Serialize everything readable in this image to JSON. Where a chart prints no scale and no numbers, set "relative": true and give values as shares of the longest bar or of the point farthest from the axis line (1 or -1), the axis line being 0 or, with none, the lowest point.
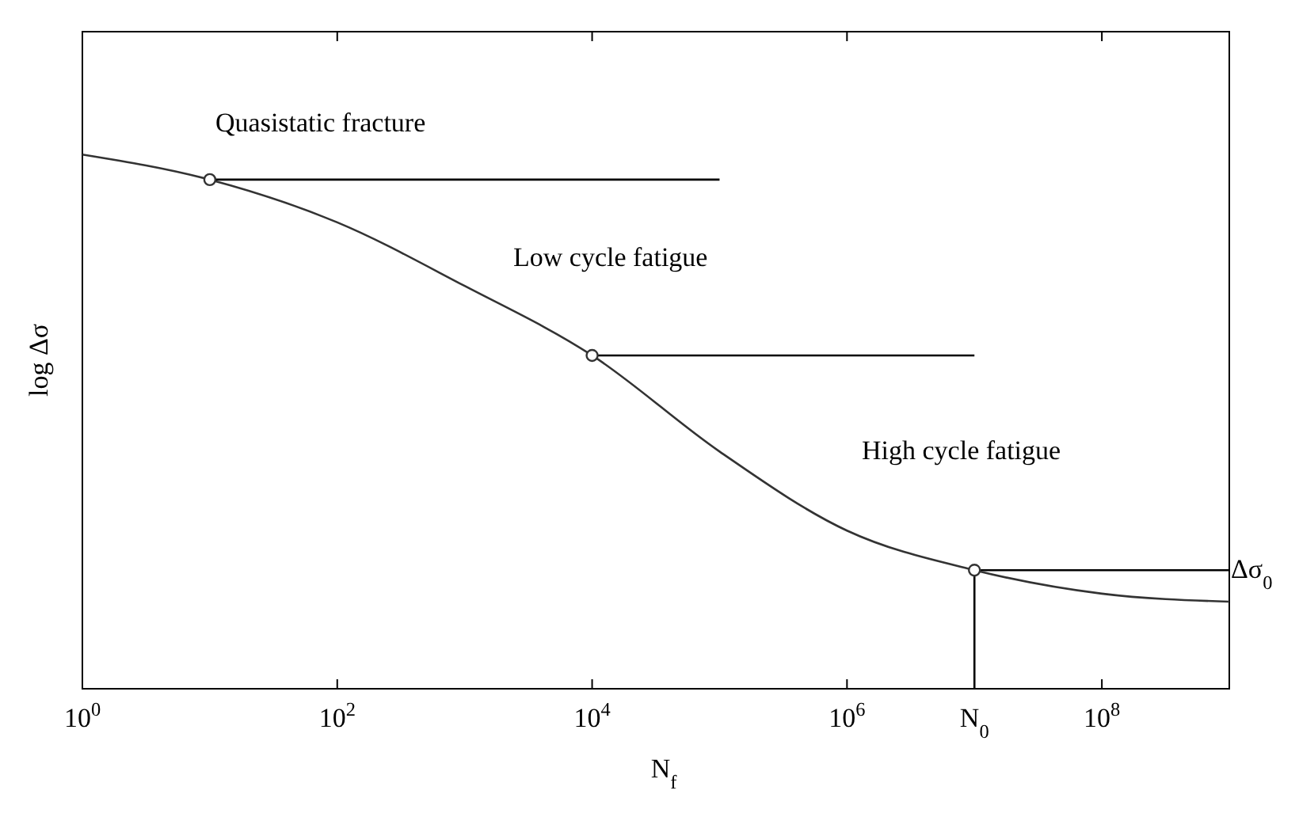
{
  "chart_data": {
    "type": "line",
    "relative": true,
    "log": "x",
    "xlabel": "N$_{f}$",
    "ylabel": "log Δσ",
    "xlim": [
      1,
      1000000000
    ],
    "xticks": [
      {
        "value": 1,
        "label": "10$^{0}$"
      },
      {
        "value": 100,
        "label": "10$^{2}$"
      },
      {
        "value": 10000,
        "label": "10$^{4}$"
      },
      {
        "value": 1000000,
        "label": "10$^{6}$"
      },
      {
        "value": 100000000,
        "label": "10$^{8}$"
      }
    ],
    "series": [
      {
        "color": "#333333",
        "marker": "none",
        "x": [
          1,
          10,
          100,
          1000,
          10000,
          100000,
          1000000,
          10000000,
          100000000,
          1000000000
        ],
        "values": [
          1,
          0.953,
          0.873,
          0.754,
          0.624,
          0.444,
          0.296,
          0.222,
          0.178,
          0.163
        ]
      },
      {
        "color": "#000000",
        "marker": "none",
        "x": [
          10,
          100000
        ],
        "values": [
          0.953,
          0.953
        ]
      },
      {
        "color": "#000000",
        "marker": "none",
        "x": [
          10000,
          10000000
        ],
        "values": [
          0.624,
          0.624
        ]
      },
      {
        "type": "scatter",
        "color": "#333333",
        "marker": "circle",
        "x": [
          10,
          10000,
          10000000
        ],
        "values": [
          0.953,
          0.624,
          0.222
        ]
      }
    ],
    "ref_lines": [
      {
        "axis": "y",
        "value": 0.222,
        "label": "Δσ$_{0}$",
        "color": "#000000"
      },
      {
        "axis": "x",
        "value": 10000000,
        "label": "N$_{0}$",
        "color": "#000000"
      }
    ],
    "annotations": [
      "Quasistatic fracture",
      "Low cycle fatigue",
      "High cycle fatigue"
    ],
    "grid": false
  }
}
